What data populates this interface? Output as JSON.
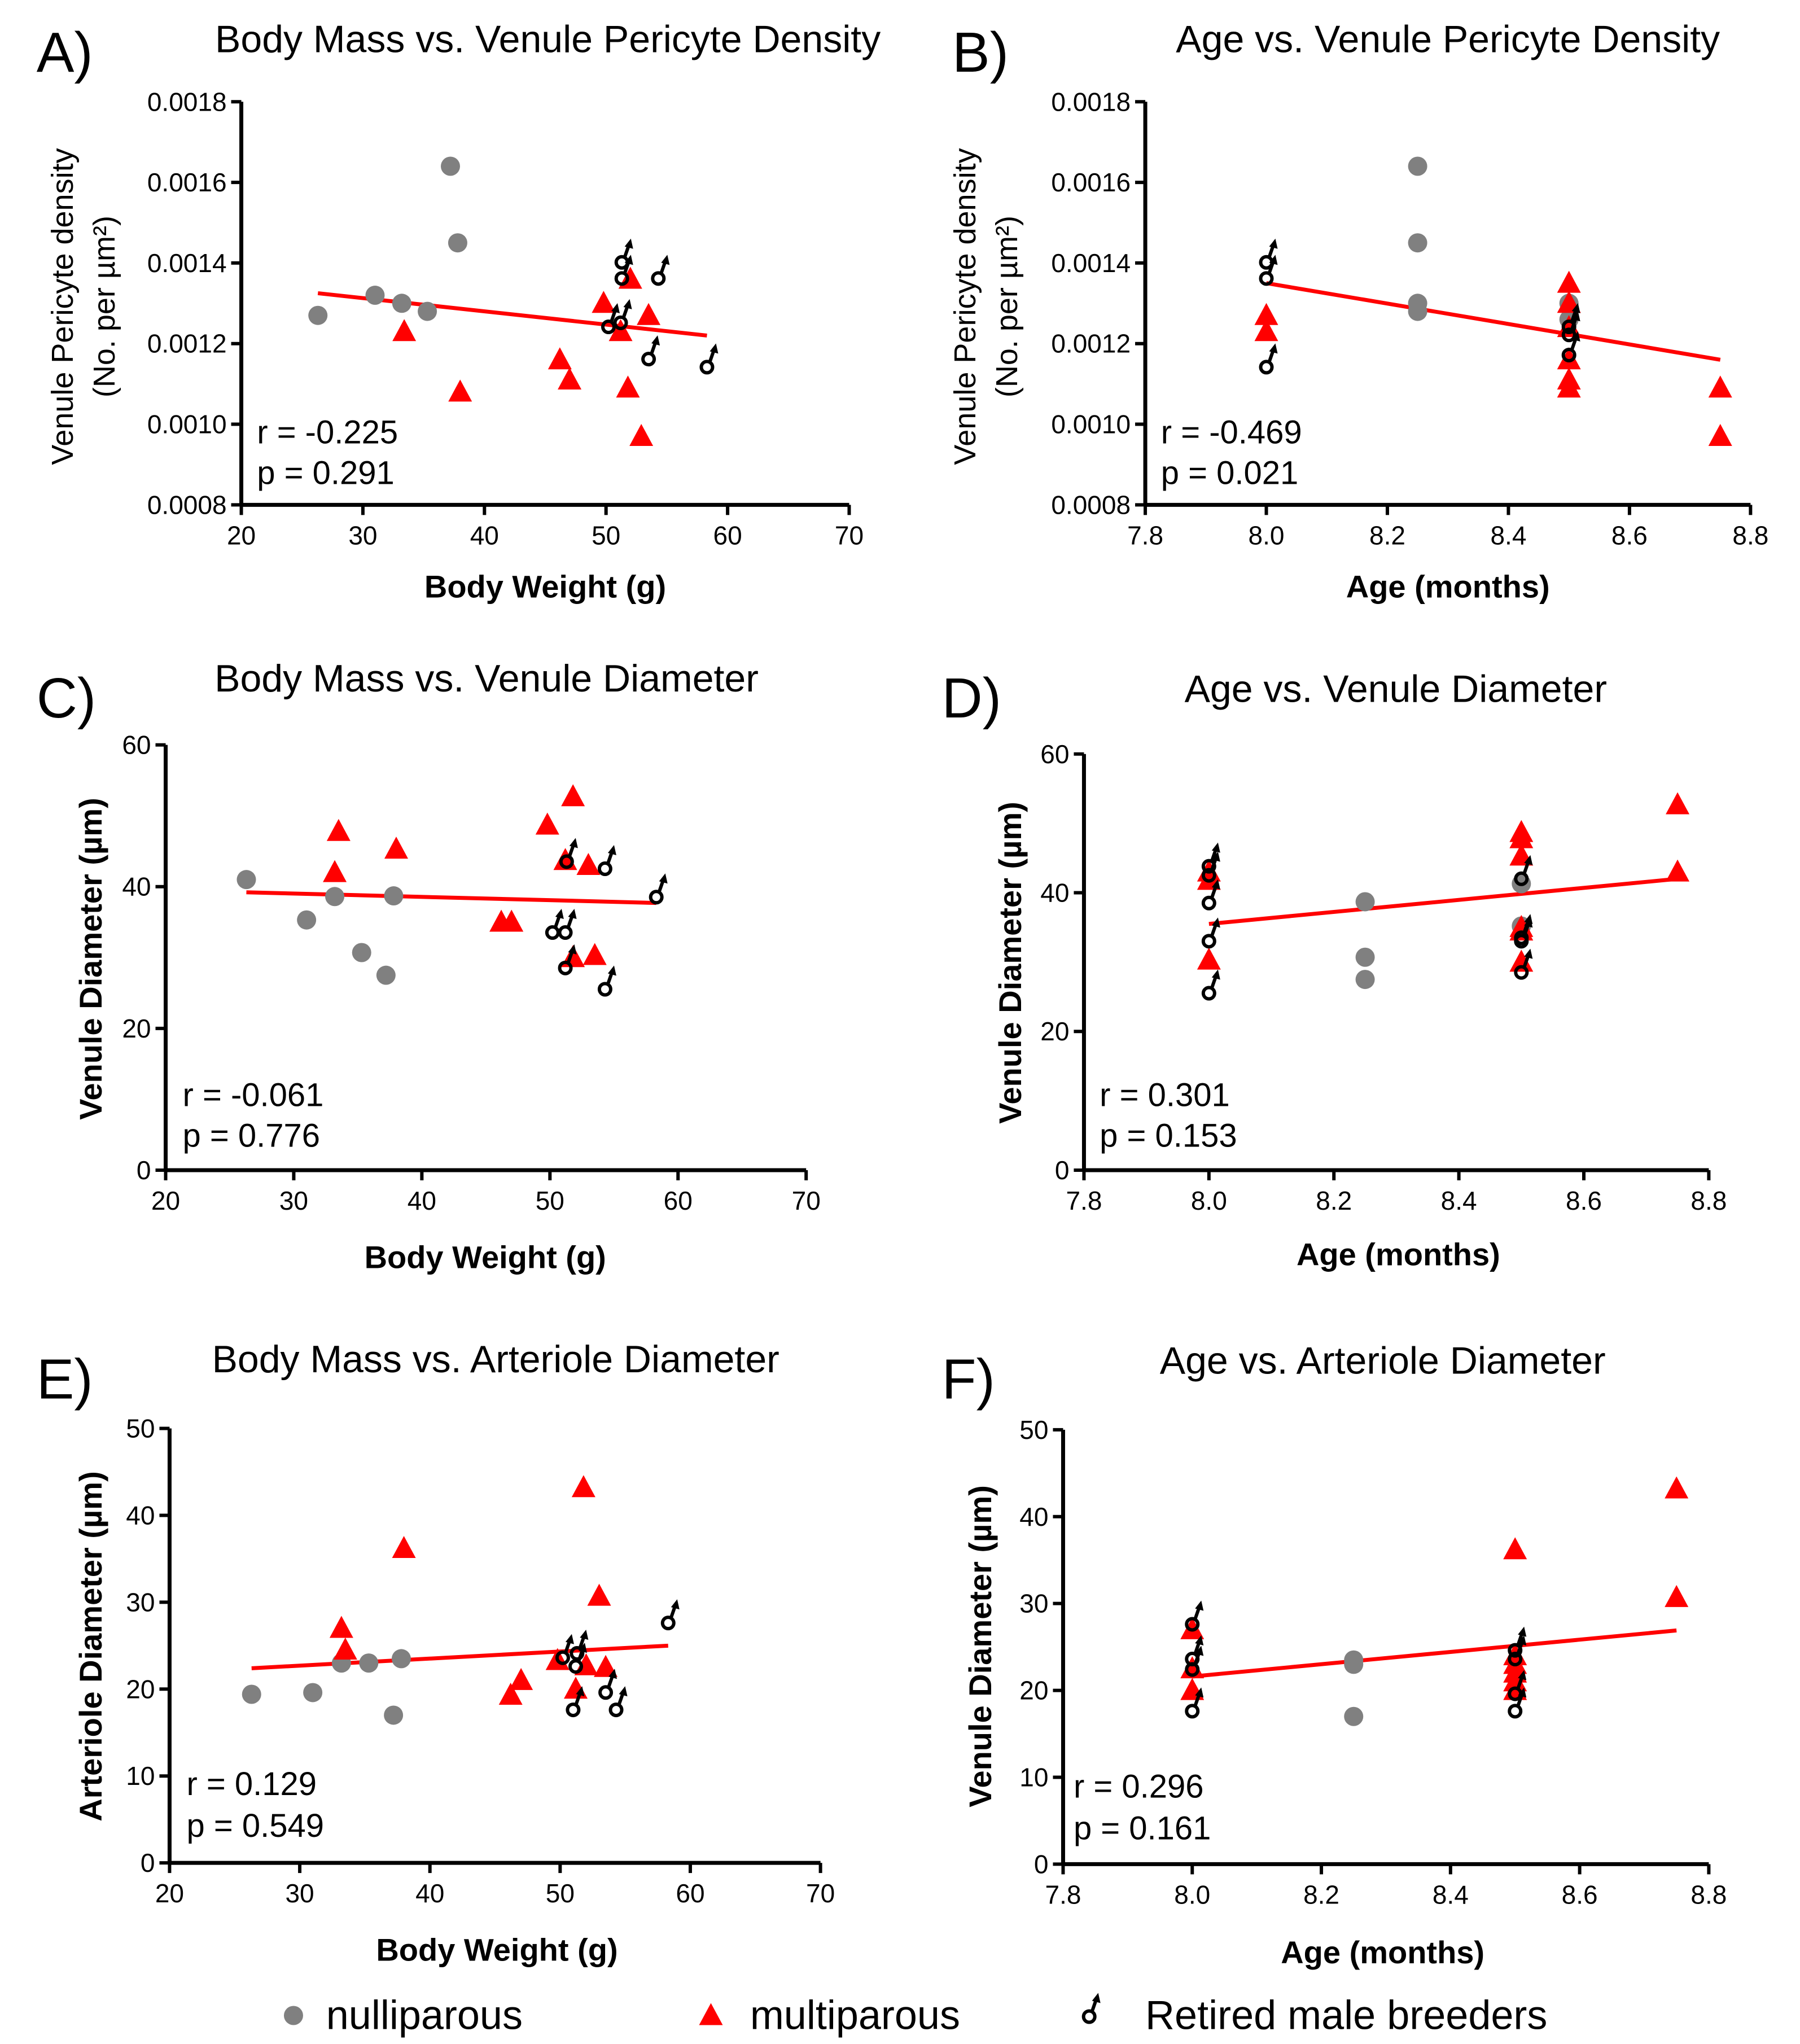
{
  "colors": {
    "nulliparous": "#808080",
    "multiparous": "#ff0000",
    "males": "#000000",
    "fit": "#ff0000"
  },
  "legend": [
    {
      "label": "nulliparous",
      "marker": "circle"
    },
    {
      "label": "multiparous",
      "marker": "triangle"
    },
    {
      "label": "Retired male breeders",
      "marker": "male-symbol"
    }
  ],
  "chart_data": [
    {
      "panel": "A)",
      "type": "scatter",
      "title": "Body Mass vs. Venule Pericyte Density",
      "xlabel": "Body Weight (g)",
      "ylabel": [
        "Venule Pericyte density",
        "(No. per µm²)"
      ],
      "xlim": [
        20,
        70
      ],
      "ylim": [
        0.0008,
        0.0018
      ],
      "xticks": [
        {
          "v": 20,
          "label": "20"
        },
        {
          "v": 30,
          "label": "30"
        },
        {
          "v": 40,
          "label": "40"
        },
        {
          "v": 50,
          "label": "50"
        },
        {
          "v": 60,
          "label": "60"
        },
        {
          "v": 70,
          "label": "70"
        }
      ],
      "yticks": [
        {
          "v": 0.0008,
          "label": "0.0008"
        },
        {
          "v": 0.001,
          "label": "0.0010"
        },
        {
          "v": 0.0012,
          "label": "0.0012"
        },
        {
          "v": 0.0014,
          "label": "0.0014"
        },
        {
          "v": 0.0016,
          "label": "0.0016"
        },
        {
          "v": 0.0018,
          "label": "0.0018"
        }
      ],
      "r": "r = -0.225",
      "p": "p = 0.291",
      "fit": [
        [
          26.3,
          0.001325
        ],
        [
          58.3,
          0.00122
        ]
      ],
      "series": [
        {
          "name": "nulliparous",
          "points": [
            [
              26.3,
              0.00127
            ],
            [
              31,
              0.00132
            ],
            [
              33.2,
              0.0013
            ],
            [
              35.3,
              0.00128
            ],
            [
              37.2,
              0.00164
            ],
            [
              37.8,
              0.00145
            ]
          ]
        },
        {
          "name": "multiparous",
          "points": [
            [
              33.4,
              0.00123
            ],
            [
              38,
              0.00108
            ],
            [
              46.2,
              0.00116
            ],
            [
              47,
              0.00111
            ],
            [
              49.8,
              0.0013
            ],
            [
              51.2,
              0.00123
            ],
            [
              51.8,
              0.00109
            ],
            [
              52,
              0.00136
            ],
            [
              52.9,
              0.00097
            ],
            [
              53.5,
              0.00127
            ]
          ]
        },
        {
          "name": "Retired male breeders",
          "points": [
            [
              50.2,
              0.00125
            ],
            [
              51.2,
              0.00126
            ],
            [
              51.3,
              0.00141
            ],
            [
              51.3,
              0.00137
            ],
            [
              54.3,
              0.00137
            ],
            [
              53.5,
              0.00117
            ],
            [
              58.3,
              0.00115
            ]
          ]
        }
      ]
    },
    {
      "panel": "B)",
      "type": "scatter",
      "title": "Age vs. Venule Pericyte Density",
      "xlabel": "Age (months)",
      "ylabel": [
        "Venule Pericyte density",
        "(No. per µm²)"
      ],
      "xlim": [
        7.8,
        8.8
      ],
      "ylim": [
        0.0008,
        0.0018
      ],
      "xticks": [
        {
          "v": 7.8,
          "label": "7.8"
        },
        {
          "v": 8.0,
          "label": "8.0"
        },
        {
          "v": 8.2,
          "label": "8.2"
        },
        {
          "v": 8.4,
          "label": "8.4"
        },
        {
          "v": 8.6,
          "label": "8.6"
        },
        {
          "v": 8.8,
          "label": "8.8"
        }
      ],
      "yticks": [
        {
          "v": 0.0008,
          "label": "0.0008"
        },
        {
          "v": 0.001,
          "label": "0.0010"
        },
        {
          "v": 0.0012,
          "label": "0.0012"
        },
        {
          "v": 0.0014,
          "label": "0.0014"
        },
        {
          "v": 0.0016,
          "label": "0.0016"
        },
        {
          "v": 0.0018,
          "label": "0.0018"
        }
      ],
      "r": "r = -0.469",
      "p": "p = 0.021",
      "fit": [
        [
          8.0,
          0.00135
        ],
        [
          8.75,
          0.00116
        ]
      ],
      "series": [
        {
          "name": "nulliparous",
          "points": [
            [
              8.25,
              0.00164
            ],
            [
              8.25,
              0.00145
            ],
            [
              8.25,
              0.0013
            ],
            [
              8.25,
              0.00128
            ],
            [
              8.5,
              0.0013
            ],
            [
              8.5,
              0.00126
            ]
          ]
        },
        {
          "name": "multiparous",
          "points": [
            [
              8.0,
              0.00127
            ],
            [
              8.0,
              0.00123
            ],
            [
              8.5,
              0.00135
            ],
            [
              8.5,
              0.0013
            ],
            [
              8.5,
              0.00124
            ],
            [
              8.5,
              0.00116
            ],
            [
              8.5,
              0.00111
            ],
            [
              8.5,
              0.00109
            ],
            [
              8.75,
              0.00109
            ],
            [
              8.75,
              0.00097
            ]
          ]
        },
        {
          "name": "Retired male breeders",
          "points": [
            [
              8.0,
              0.00141
            ],
            [
              8.0,
              0.00137
            ],
            [
              8.0,
              0.00115
            ],
            [
              8.5,
              0.00125
            ],
            [
              8.5,
              0.00123
            ],
            [
              8.5,
              0.00118
            ]
          ]
        }
      ]
    },
    {
      "panel": "C)",
      "type": "scatter",
      "title": "Body Mass vs. Venule Diameter",
      "xlabel": "Body Weight (g)",
      "ylabel": [
        "Venule Diameter (µm)"
      ],
      "xlim": [
        20,
        70
      ],
      "ylim": [
        0,
        60
      ],
      "xticks": [
        {
          "v": 20,
          "label": "20"
        },
        {
          "v": 30,
          "label": "30"
        },
        {
          "v": 40,
          "label": "40"
        },
        {
          "v": 50,
          "label": "50"
        },
        {
          "v": 60,
          "label": "60"
        },
        {
          "v": 70,
          "label": "70"
        }
      ],
      "yticks": [
        {
          "v": 0,
          "label": "0"
        },
        {
          "v": 20,
          "label": "20"
        },
        {
          "v": 40,
          "label": "40"
        },
        {
          "v": 60,
          "label": "60"
        }
      ],
      "r": "r = -0.061",
      "p": "p = 0.776",
      "fit": [
        [
          26.3,
          39.2
        ],
        [
          58.3,
          37.7
        ]
      ],
      "series": [
        {
          "name": "nulliparous",
          "points": [
            [
              26.3,
              41
            ],
            [
              31,
              35.3
            ],
            [
              33.2,
              38.6
            ],
            [
              35.3,
              30.7
            ],
            [
              37.2,
              27.5
            ],
            [
              37.8,
              38.7
            ]
          ]
        },
        {
          "name": "multiparous",
          "points": [
            [
              33.2,
              42
            ],
            [
              33.5,
              47.8
            ],
            [
              38,
              45.3
            ],
            [
              46.2,
              35
            ],
            [
              47,
              35
            ],
            [
              49.8,
              48.7
            ],
            [
              51.2,
              43.7
            ],
            [
              51.8,
              52.7
            ],
            [
              51.8,
              30
            ],
            [
              53,
              43
            ],
            [
              53.5,
              30.3
            ]
          ]
        },
        {
          "name": "Retired male breeders",
          "points": [
            [
              50.2,
              34
            ],
            [
              51.2,
              34
            ],
            [
              51.2,
              29
            ],
            [
              51.3,
              44
            ],
            [
              54.3,
              43
            ],
            [
              54.3,
              26
            ],
            [
              58.3,
              39
            ]
          ]
        }
      ]
    },
    {
      "panel": "D)",
      "type": "scatter",
      "title": "Age vs. Venule Diameter",
      "xlabel": "Age (months)",
      "ylabel": [
        "Venule Diameter (µm)"
      ],
      "xlim": [
        7.8,
        8.8
      ],
      "ylim": [
        0,
        60
      ],
      "xticks": [
        {
          "v": 7.8,
          "label": "7.8"
        },
        {
          "v": 8.0,
          "label": "8.0"
        },
        {
          "v": 8.2,
          "label": "8.2"
        },
        {
          "v": 8.4,
          "label": "8.4"
        },
        {
          "v": 8.6,
          "label": "8.6"
        },
        {
          "v": 8.8,
          "label": "8.8"
        }
      ],
      "yticks": [
        {
          "v": 0,
          "label": "0"
        },
        {
          "v": 20,
          "label": "20"
        },
        {
          "v": 40,
          "label": "40"
        },
        {
          "v": 60,
          "label": "60"
        }
      ],
      "r": "r = 0.301",
      "p": "p = 0.153",
      "fit": [
        [
          8.0,
          35.5
        ],
        [
          8.75,
          42
        ]
      ],
      "series": [
        {
          "name": "nulliparous",
          "points": [
            [
              8.25,
              38.7
            ],
            [
              8.25,
              30.7
            ],
            [
              8.25,
              27.5
            ],
            [
              8.5,
              41.3
            ],
            [
              8.5,
              35.2
            ]
          ]
        },
        {
          "name": "multiparous",
          "points": [
            [
              8.0,
              43
            ],
            [
              8.0,
              41.8
            ],
            [
              8.0,
              30.3
            ],
            [
              8.5,
              48.7
            ],
            [
              8.5,
              47.8
            ],
            [
              8.5,
              45.3
            ],
            [
              8.5,
              35
            ],
            [
              8.5,
              34.5
            ],
            [
              8.5,
              30
            ],
            [
              8.75,
              52.7
            ],
            [
              8.75,
              43
            ]
          ]
        },
        {
          "name": "Retired male breeders",
          "points": [
            [
              8.0,
              44.3
            ],
            [
              8.0,
              43
            ],
            [
              8.0,
              39
            ],
            [
              8.0,
              33.5
            ],
            [
              8.0,
              26
            ],
            [
              8.5,
              42.5
            ],
            [
              8.5,
              34
            ],
            [
              8.5,
              33.5
            ],
            [
              8.5,
              29
            ]
          ]
        }
      ]
    },
    {
      "panel": "E)",
      "type": "scatter",
      "title": "Body Mass vs. Arteriole Diameter",
      "xlabel": "Body Weight (g)",
      "ylabel": [
        "Arteriole Diameter (µm)"
      ],
      "xlim": [
        20,
        70
      ],
      "ylim": [
        0,
        50
      ],
      "xticks": [
        {
          "v": 20,
          "label": "20"
        },
        {
          "v": 30,
          "label": "30"
        },
        {
          "v": 40,
          "label": "40"
        },
        {
          "v": 50,
          "label": "50"
        },
        {
          "v": 60,
          "label": "60"
        },
        {
          "v": 70,
          "label": "70"
        }
      ],
      "yticks": [
        {
          "v": 0,
          "label": "0"
        },
        {
          "v": 10,
          "label": "10"
        },
        {
          "v": 20,
          "label": "20"
        },
        {
          "v": 30,
          "label": "30"
        },
        {
          "v": 40,
          "label": "40"
        },
        {
          "v": 50,
          "label": "50"
        }
      ],
      "r": "r = 0.129",
      "p": "p = 0.549",
      "fit": [
        [
          26.3,
          22.4
        ],
        [
          58.3,
          25
        ]
      ],
      "series": [
        {
          "name": "nulliparous",
          "points": [
            [
              26.3,
              19.4
            ],
            [
              31,
              19.6
            ],
            [
              33.2,
              23
            ],
            [
              35.3,
              23
            ],
            [
              37.2,
              17
            ],
            [
              37.8,
              23.5
            ]
          ]
        },
        {
          "name": "multiparous",
          "points": [
            [
              33.2,
              27
            ],
            [
              33.5,
              24.5
            ],
            [
              38,
              36.2
            ],
            [
              46.2,
              19.3
            ],
            [
              47,
              21
            ],
            [
              49.8,
              23.3
            ],
            [
              51.2,
              20
            ],
            [
              51.8,
              43.2
            ],
            [
              52,
              22.7
            ],
            [
              53,
              30.7
            ],
            [
              53.5,
              22.5
            ]
          ]
        },
        {
          "name": "Retired male breeders",
          "points": [
            [
              50.2,
              24
            ],
            [
              51,
              18
            ],
            [
              51.2,
              23
            ],
            [
              51.3,
              24.5
            ],
            [
              53.5,
              20
            ],
            [
              54.3,
              18
            ],
            [
              58.3,
              28
            ]
          ]
        }
      ]
    },
    {
      "panel": "F)",
      "type": "scatter",
      "title": "Age vs. Arteriole Diameter",
      "xlabel": "Age (months)",
      "ylabel": [
        "Venule Diameter (µm)"
      ],
      "xlim": [
        7.8,
        8.8
      ],
      "ylim": [
        0,
        50
      ],
      "xticks": [
        {
          "v": 7.8,
          "label": "7.8"
        },
        {
          "v": 8.0,
          "label": "8.0"
        },
        {
          "v": 8.2,
          "label": "8.2"
        },
        {
          "v": 8.4,
          "label": "8.4"
        },
        {
          "v": 8.6,
          "label": "8.6"
        },
        {
          "v": 8.8,
          "label": "8.8"
        }
      ],
      "yticks": [
        {
          "v": 0,
          "label": "0"
        },
        {
          "v": 10,
          "label": "10"
        },
        {
          "v": 20,
          "label": "20"
        },
        {
          "v": 30,
          "label": "30"
        },
        {
          "v": 40,
          "label": "40"
        },
        {
          "v": 50,
          "label": "50"
        }
      ],
      "r": "r = 0.296",
      "p": "p = 0.161",
      "fit": [
        [
          8.0,
          21.6
        ],
        [
          8.75,
          26.9
        ]
      ],
      "series": [
        {
          "name": "nulliparous",
          "points": [
            [
              8.25,
              23.5
            ],
            [
              8.25,
              23
            ],
            [
              8.25,
              17
            ]
          ]
        },
        {
          "name": "multiparous",
          "points": [
            [
              8.0,
              27
            ],
            [
              8.0,
              22.5
            ],
            [
              8.0,
              20
            ],
            [
              8.5,
              36.2
            ],
            [
              8.5,
              24
            ],
            [
              8.5,
              23
            ],
            [
              8.5,
              22
            ],
            [
              8.5,
              21
            ],
            [
              8.5,
              20
            ],
            [
              8.75,
              43.2
            ],
            [
              8.75,
              30.7
            ]
          ]
        },
        {
          "name": "Retired male breeders",
          "points": [
            [
              8.0,
              28
            ],
            [
              8.0,
              24
            ],
            [
              8.0,
              22.8
            ],
            [
              8.0,
              18
            ],
            [
              8.5,
              25
            ],
            [
              8.5,
              24
            ],
            [
              8.5,
              20
            ],
            [
              8.5,
              18
            ]
          ]
        }
      ]
    }
  ]
}
